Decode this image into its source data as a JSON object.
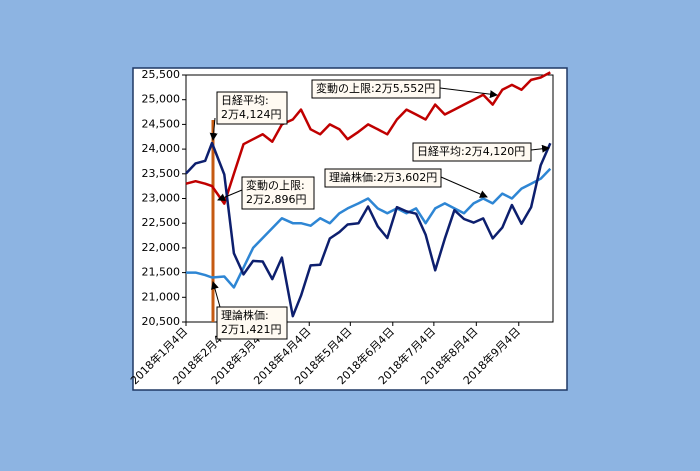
{
  "chart_data": {
    "type": "line",
    "x": [
      "2018-01-04",
      "2018-01-11",
      "2018-01-18",
      "2018-01-23",
      "2018-02-01",
      "2018-02-08",
      "2018-02-15",
      "2018-02-22",
      "2018-03-01",
      "2018-03-08",
      "2018-03-15",
      "2018-03-23",
      "2018-03-29",
      "2018-04-05",
      "2018-04-12",
      "2018-04-19",
      "2018-04-26",
      "2018-05-02",
      "2018-05-10",
      "2018-05-17",
      "2018-05-24",
      "2018-05-31",
      "2018-06-07",
      "2018-06-14",
      "2018-06-21",
      "2018-06-28",
      "2018-07-05",
      "2018-07-12",
      "2018-07-19",
      "2018-07-26",
      "2018-08-02",
      "2018-08-09",
      "2018-08-16",
      "2018-08-23",
      "2018-08-30",
      "2018-09-06",
      "2018-09-13",
      "2018-09-20",
      "2018-09-27"
    ],
    "series": [
      {
        "color": "#c00000",
        "values": [
          23300,
          23350,
          23300,
          23250,
          22896,
          23500,
          24100,
          24200,
          24300,
          24150,
          24500,
          24600,
          24800,
          24400,
          24300,
          24500,
          24400,
          24200,
          24350,
          24500,
          24400,
          24300,
          24600,
          24800,
          24700,
          24600,
          24900,
          24700,
          24800,
          24900,
          25000,
          25100,
          24900,
          25200,
          25300,
          25200,
          25400,
          25450,
          25552
        ]
      },
      {
        "color": "#2e86d4",
        "values": [
          21500,
          21500,
          21450,
          21400,
          21421,
          21200,
          21600,
          22000,
          22200,
          22400,
          22600,
          22500,
          22500,
          22450,
          22600,
          22500,
          22700,
          22800,
          22900,
          23000,
          22800,
          22700,
          22800,
          22700,
          22800,
          22500,
          22800,
          22900,
          22800,
          22700,
          22900,
          23000,
          22900,
          23100,
          23000,
          23200,
          23300,
          23400,
          23602
        ]
      },
      {
        "color": "#0d1f6e",
        "values": [
          23506,
          23710,
          23763,
          24124,
          23486,
          21890,
          21464,
          21736,
          21724,
          21368,
          21803,
          20617,
          21032,
          21645,
          21660,
          22191,
          22319,
          22473,
          22497,
          22838,
          22437,
          22201,
          22823,
          22738,
          22693,
          22270,
          21546,
          22187,
          22764,
          22586,
          22512,
          22598,
          22192,
          22410,
          22869,
          22487,
          22821,
          23674,
          24120
        ]
      }
    ],
    "xlim": [
      "2018-01-04",
      "2018-09-29"
    ],
    "xticks": [
      {
        "value": "2018-01-04",
        "label": "2018年1月4日"
      },
      {
        "value": "2018-02-04",
        "label": "2018年2月4日"
      },
      {
        "value": "2018-03-04",
        "label": "2018年3月4日"
      },
      {
        "value": "2018-04-04",
        "label": "2018年4月4日"
      },
      {
        "value": "2018-05-04",
        "label": "2018年5月4日"
      },
      {
        "value": "2018-06-04",
        "label": "2018年6月4日"
      },
      {
        "value": "2018-07-04",
        "label": "2018年7月4日"
      },
      {
        "value": "2018-08-04",
        "label": "2018年8月4日"
      },
      {
        "value": "2018-09-04",
        "label": "2018年9月4日"
      }
    ],
    "ylim": [
      20500,
      25500
    ],
    "yticks": [
      {
        "value": 20500,
        "label": "20,500"
      },
      {
        "value": 21000,
        "label": "21,000"
      },
      {
        "value": 21500,
        "label": "21,500"
      },
      {
        "value": 22000,
        "label": "22,000"
      },
      {
        "value": 22500,
        "label": "22,500"
      },
      {
        "value": 23000,
        "label": "23,000"
      },
      {
        "value": 23500,
        "label": "23,500"
      },
      {
        "value": 24000,
        "label": "24,000"
      },
      {
        "value": 24500,
        "label": "24,500"
      },
      {
        "value": 25000,
        "label": "25,000"
      },
      {
        "value": 25500,
        "label": "25,500"
      }
    ],
    "grid": false,
    "annotations": [
      {
        "lines": [
          "日経平均:",
          "2万4,124円"
        ]
      },
      {
        "lines": [
          "変動の上限:",
          "2万2,896円"
        ]
      },
      {
        "lines": [
          "理論株価:",
          "2万1,421円"
        ]
      },
      {
        "lines": [
          "変動の上限:2万5,552円"
        ]
      },
      {
        "lines": [
          "日経平均:2万4,120円"
        ]
      },
      {
        "lines": [
          "理論株価:2万3,602円"
        ]
      }
    ]
  }
}
